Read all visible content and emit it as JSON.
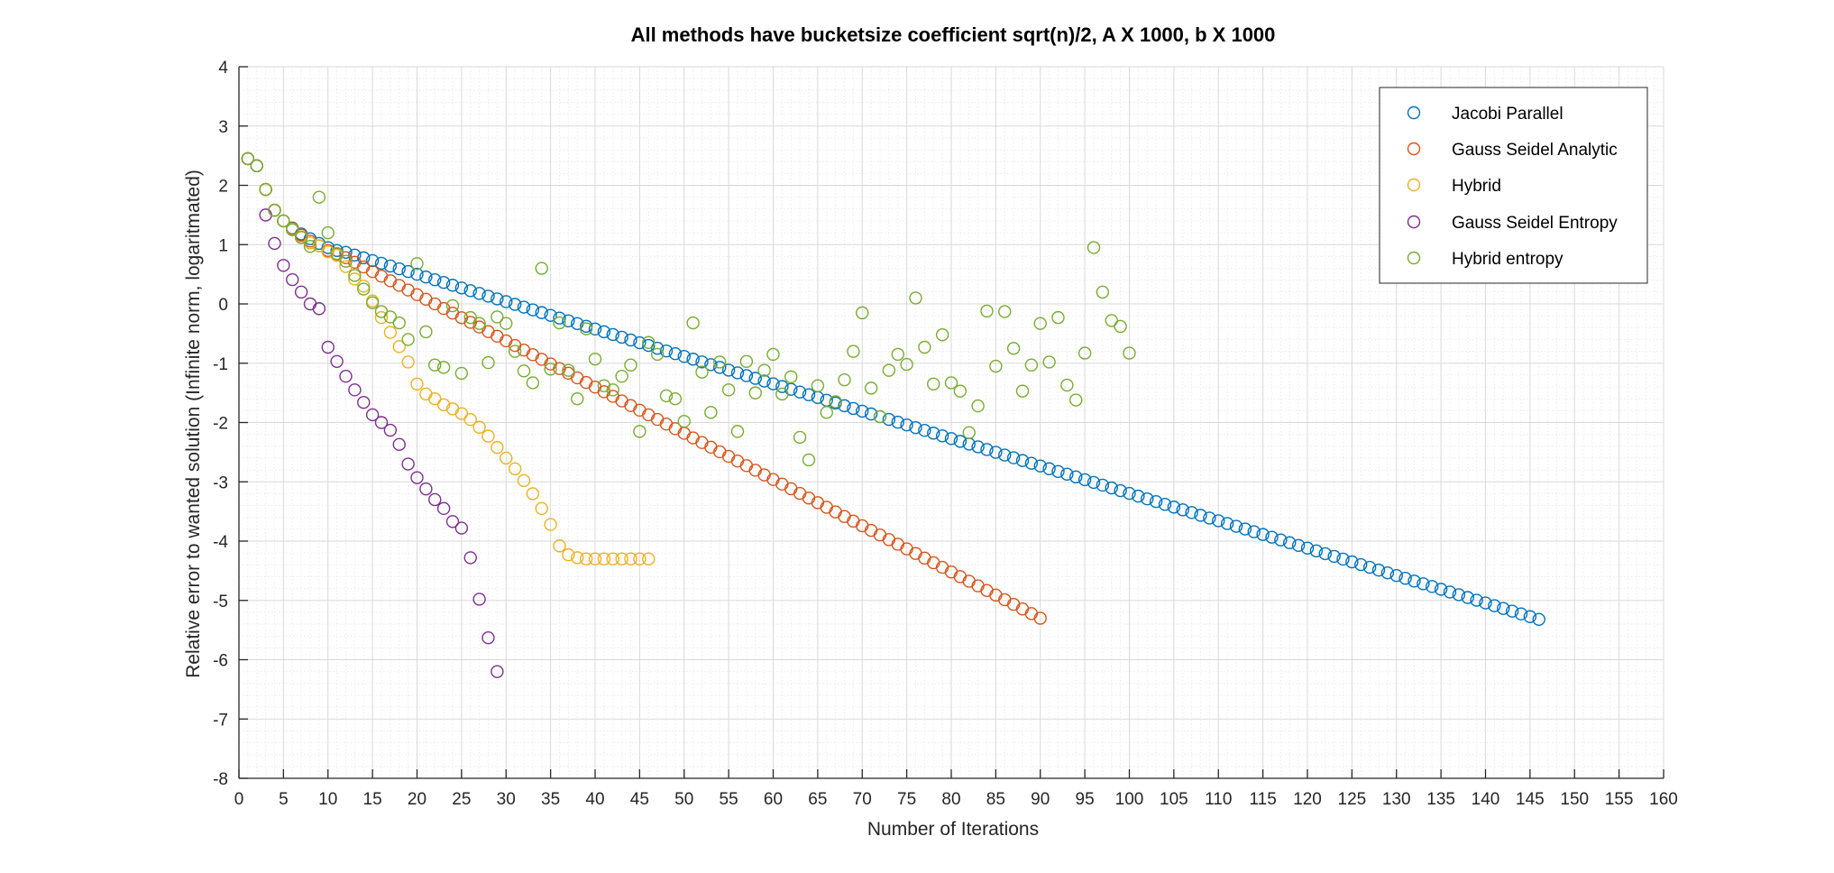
{
  "chart_data": {
    "type": "scatter",
    "title": "All methods have bucketsize coefficient sqrt(n)/2, A X 1000, b X 1000",
    "xlabel": "Number of Iterations",
    "ylabel": "Relative error to wanted solution (Infinite norm, logaritmated)",
    "xlim": [
      0,
      160
    ],
    "ylim": [
      -8,
      4
    ],
    "xticks": [
      0,
      5,
      10,
      15,
      20,
      25,
      30,
      35,
      40,
      45,
      50,
      55,
      60,
      65,
      70,
      75,
      80,
      85,
      90,
      95,
      100,
      105,
      110,
      115,
      120,
      125,
      130,
      135,
      140,
      145,
      150,
      155,
      160
    ],
    "yticks": [
      4,
      3,
      2,
      1,
      0,
      -1,
      -2,
      -3,
      -4,
      -5,
      -6,
      -7,
      -8
    ],
    "grid": "on",
    "minor_grid": "on",
    "legend_position": "top-right",
    "marker": "circle",
    "series": [
      {
        "name": "Jacobi Parallel",
        "color": "#0072BD",
        "generator": {
          "type": "linear",
          "x_start": 12,
          "x_end": 146,
          "y_start": 0.87,
          "y_end": -5.32
        },
        "points": [
          [
            1,
            2.45
          ],
          [
            2,
            2.33
          ],
          [
            3,
            1.93
          ],
          [
            4,
            1.58
          ],
          [
            5,
            1.4
          ],
          [
            6,
            1.28
          ],
          [
            7,
            1.18
          ],
          [
            8,
            1.1
          ],
          [
            9,
            1.02
          ],
          [
            10,
            0.95
          ],
          [
            11,
            0.9
          ]
        ]
      },
      {
        "name": "Gauss Seidel Analytic",
        "color": "#D95319",
        "generator": {
          "type": "linear",
          "x_start": 12,
          "x_end": 90,
          "y_start": 0.78,
          "y_end": -5.3
        },
        "points": [
          [
            1,
            2.45
          ],
          [
            2,
            2.33
          ],
          [
            3,
            1.93
          ],
          [
            4,
            1.58
          ],
          [
            5,
            1.4
          ],
          [
            6,
            1.27
          ],
          [
            7,
            1.16
          ],
          [
            8,
            1.06
          ],
          [
            9,
            0.98
          ],
          [
            10,
            0.9
          ],
          [
            11,
            0.84
          ]
        ]
      },
      {
        "name": "Hybrid",
        "color": "#EDB120",
        "points": [
          [
            1,
            2.45
          ],
          [
            2,
            2.33
          ],
          [
            3,
            1.93
          ],
          [
            4,
            1.58
          ],
          [
            5,
            1.4
          ],
          [
            6,
            1.26
          ],
          [
            7,
            1.13
          ],
          [
            8,
            1.03
          ],
          [
            9,
            0.98
          ],
          [
            10,
            0.88
          ],
          [
            11,
            0.82
          ],
          [
            12,
            0.63
          ],
          [
            13,
            0.42
          ],
          [
            14,
            0.3
          ],
          [
            15,
            0.05
          ],
          [
            16,
            -0.23
          ],
          [
            17,
            -0.48
          ],
          [
            18,
            -0.72
          ],
          [
            19,
            -0.98
          ],
          [
            20,
            -1.35
          ],
          [
            21,
            -1.52
          ],
          [
            22,
            -1.6
          ],
          [
            23,
            -1.7
          ],
          [
            24,
            -1.77
          ],
          [
            25,
            -1.85
          ],
          [
            26,
            -1.95
          ],
          [
            27,
            -2.08
          ],
          [
            28,
            -2.23
          ],
          [
            29,
            -2.42
          ],
          [
            30,
            -2.6
          ],
          [
            31,
            -2.78
          ],
          [
            32,
            -2.98
          ],
          [
            33,
            -3.2
          ],
          [
            34,
            -3.45
          ],
          [
            35,
            -3.72
          ],
          [
            36,
            -4.08
          ],
          [
            37,
            -4.23
          ],
          [
            38,
            -4.28
          ],
          [
            39,
            -4.3
          ],
          [
            40,
            -4.3
          ],
          [
            41,
            -4.3
          ],
          [
            42,
            -4.3
          ],
          [
            43,
            -4.3
          ],
          [
            44,
            -4.3
          ],
          [
            45,
            -4.3
          ],
          [
            46,
            -4.3
          ]
        ]
      },
      {
        "name": "Gauss Seidel Entropy",
        "color": "#7E2F8E",
        "points": [
          [
            1,
            2.45
          ],
          [
            2,
            2.33
          ],
          [
            3,
            1.5
          ],
          [
            4,
            1.02
          ],
          [
            5,
            0.65
          ],
          [
            6,
            0.41
          ],
          [
            7,
            0.2
          ],
          [
            8,
            0.0
          ],
          [
            9,
            -0.08
          ],
          [
            10,
            -0.73
          ],
          [
            11,
            -0.97
          ],
          [
            12,
            -1.22
          ],
          [
            13,
            -1.45
          ],
          [
            14,
            -1.66
          ],
          [
            15,
            -1.87
          ],
          [
            16,
            -2.0
          ],
          [
            17,
            -2.13
          ],
          [
            18,
            -2.37
          ],
          [
            19,
            -2.7
          ],
          [
            20,
            -2.93
          ],
          [
            21,
            -3.12
          ],
          [
            22,
            -3.3
          ],
          [
            23,
            -3.45
          ],
          [
            24,
            -3.67
          ],
          [
            25,
            -3.78
          ],
          [
            26,
            -4.28
          ],
          [
            27,
            -4.98
          ],
          [
            28,
            -5.63
          ],
          [
            29,
            -6.2
          ]
        ]
      },
      {
        "name": "Hybrid entropy",
        "color": "#77AC30",
        "points": [
          [
            1,
            2.45
          ],
          [
            2,
            2.33
          ],
          [
            3,
            1.93
          ],
          [
            4,
            1.58
          ],
          [
            5,
            1.4
          ],
          [
            6,
            1.25
          ],
          [
            7,
            1.12
          ],
          [
            8,
            0.97
          ],
          [
            9,
            1.8
          ],
          [
            10,
            1.2
          ],
          [
            11,
            0.85
          ],
          [
            12,
            0.72
          ],
          [
            13,
            0.48
          ],
          [
            14,
            0.25
          ],
          [
            15,
            0.02
          ],
          [
            16,
            -0.13
          ],
          [
            17,
            -0.22
          ],
          [
            18,
            -0.32
          ],
          [
            19,
            -0.6
          ],
          [
            20,
            0.68
          ],
          [
            21,
            -0.47
          ],
          [
            22,
            -1.03
          ],
          [
            23,
            -1.07
          ],
          [
            24,
            -0.03
          ],
          [
            25,
            -1.17
          ],
          [
            26,
            -0.23
          ],
          [
            27,
            -0.33
          ],
          [
            28,
            -0.99
          ],
          [
            29,
            -0.22
          ],
          [
            30,
            -0.33
          ],
          [
            31,
            -0.8
          ],
          [
            32,
            -1.13
          ],
          [
            33,
            -1.33
          ],
          [
            34,
            0.6
          ],
          [
            35,
            -1.1
          ],
          [
            36,
            -0.32
          ],
          [
            37,
            -1.12
          ],
          [
            38,
            -1.6
          ],
          [
            39,
            -0.42
          ],
          [
            40,
            -0.93
          ],
          [
            41,
            -1.38
          ],
          [
            42,
            -1.45
          ],
          [
            43,
            -1.22
          ],
          [
            44,
            -1.03
          ],
          [
            45,
            -2.15
          ],
          [
            46,
            -0.65
          ],
          [
            47,
            -0.85
          ],
          [
            48,
            -1.55
          ],
          [
            49,
            -1.6
          ],
          [
            50,
            -1.98
          ],
          [
            51,
            -0.32
          ],
          [
            52,
            -1.15
          ],
          [
            53,
            -1.83
          ],
          [
            54,
            -0.98
          ],
          [
            55,
            -1.45
          ],
          [
            56,
            -2.15
          ],
          [
            57,
            -0.97
          ],
          [
            58,
            -1.5
          ],
          [
            59,
            -1.12
          ],
          [
            60,
            -0.85
          ],
          [
            61,
            -1.52
          ],
          [
            62,
            -1.23
          ],
          [
            63,
            -2.25
          ],
          [
            64,
            -2.63
          ],
          [
            65,
            -1.38
          ],
          [
            66,
            -1.83
          ],
          [
            67,
            -1.65
          ],
          [
            68,
            -1.28
          ],
          [
            69,
            -0.8
          ],
          [
            70,
            -0.15
          ],
          [
            71,
            -1.42
          ],
          [
            72,
            -1.9
          ],
          [
            73,
            -1.12
          ],
          [
            74,
            -0.85
          ],
          [
            75,
            -1.02
          ],
          [
            76,
            0.1
          ],
          [
            77,
            -0.73
          ],
          [
            78,
            -1.35
          ],
          [
            79,
            -0.52
          ],
          [
            80,
            -1.33
          ],
          [
            81,
            -1.47
          ],
          [
            82,
            -2.17
          ],
          [
            83,
            -1.72
          ],
          [
            84,
            -0.12
          ],
          [
            85,
            -1.05
          ],
          [
            86,
            -0.13
          ],
          [
            87,
            -0.75
          ],
          [
            88,
            -1.47
          ],
          [
            89,
            -1.03
          ],
          [
            90,
            -0.33
          ],
          [
            91,
            -0.98
          ],
          [
            92,
            -0.23
          ],
          [
            93,
            -1.37
          ],
          [
            94,
            -1.62
          ],
          [
            95,
            -0.83
          ],
          [
            96,
            0.95
          ],
          [
            97,
            0.2
          ],
          [
            98,
            -0.28
          ],
          [
            99,
            -0.38
          ],
          [
            100,
            -0.83
          ]
        ]
      }
    ]
  }
}
